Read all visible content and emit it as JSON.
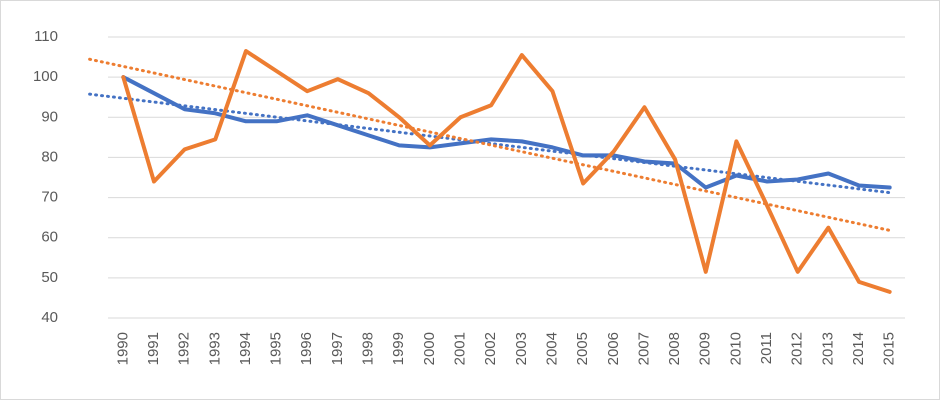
{
  "chart_data": {
    "type": "line",
    "categories": [
      "1990",
      "1991",
      "1992",
      "1993",
      "1994",
      "1995",
      "1996",
      "1997",
      "1998",
      "1999",
      "2000",
      "2001",
      "2002",
      "2003",
      "2004",
      "2005",
      "2006",
      "2007",
      "2008",
      "2009",
      "2010",
      "2011",
      "2012",
      "2013",
      "2014",
      "2015"
    ],
    "series": [
      {
        "color": "#4472c4",
        "trendline": true,
        "values": [
          100,
          96,
          92,
          91,
          89,
          89,
          90.5,
          88,
          85.5,
          83,
          82.5,
          83.5,
          84.5,
          84,
          82.5,
          80.5,
          80.5,
          79,
          78.5,
          72.5,
          75.5,
          74,
          74.5,
          76,
          73,
          72.5
        ]
      },
      {
        "color": "#ed7d31",
        "trendline": true,
        "values": [
          100,
          74,
          82,
          84.5,
          106.5,
          101.5,
          96.5,
          99.5,
          96,
          90,
          83,
          90,
          93,
          105.5,
          96.5,
          73.5,
          81.5,
          92.5,
          79.5,
          51.5,
          84,
          68,
          51.5,
          62.5,
          49,
          46.5
        ]
      }
    ],
    "ylim": [
      40,
      110
    ],
    "yticks": [
      40,
      50,
      60,
      70,
      80,
      90,
      100,
      110
    ],
    "grid": true
  }
}
